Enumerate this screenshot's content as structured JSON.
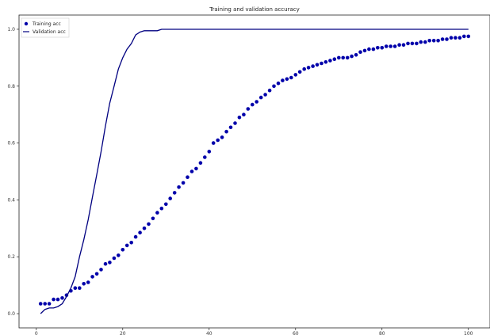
{
  "chart_data": {
    "type": "line",
    "title": "Training and validation accuracy",
    "xlabel": "",
    "ylabel": "",
    "xlim": [
      -4,
      105
    ],
    "ylim": [
      -0.05,
      1.05
    ],
    "xticks": [
      0,
      20,
      40,
      60,
      80,
      100
    ],
    "yticks": [
      0.0,
      0.2,
      0.4,
      0.6,
      0.8,
      1.0
    ],
    "xtick_labels": [
      "0",
      "20",
      "40",
      "60",
      "80",
      "100"
    ],
    "ytick_labels": [
      "0.0",
      "0.2",
      "0.4",
      "0.6",
      "0.8",
      "1.0"
    ],
    "grid": false,
    "legend_position": "top-left",
    "series": [
      {
        "name": "Training acc",
        "style": "dots",
        "color": "#0000aa",
        "x": [
          1,
          2,
          3,
          4,
          5,
          6,
          7,
          8,
          9,
          10,
          11,
          12,
          13,
          14,
          15,
          16,
          17,
          18,
          19,
          20,
          21,
          22,
          23,
          24,
          25,
          26,
          27,
          28,
          29,
          30,
          31,
          32,
          33,
          34,
          35,
          36,
          37,
          38,
          39,
          40,
          41,
          42,
          43,
          44,
          45,
          46,
          47,
          48,
          49,
          50,
          51,
          52,
          53,
          54,
          55,
          56,
          57,
          58,
          59,
          60,
          61,
          62,
          63,
          64,
          65,
          66,
          67,
          68,
          69,
          70,
          71,
          72,
          73,
          74,
          75,
          76,
          77,
          78,
          79,
          80,
          81,
          82,
          83,
          84,
          85,
          86,
          87,
          88,
          89,
          90,
          91,
          92,
          93,
          94,
          95,
          96,
          97,
          98,
          99,
          100
        ],
        "y": [
          0.035,
          0.035,
          0.035,
          0.05,
          0.05,
          0.055,
          0.065,
          0.08,
          0.09,
          0.09,
          0.105,
          0.11,
          0.13,
          0.14,
          0.155,
          0.175,
          0.18,
          0.195,
          0.205,
          0.225,
          0.24,
          0.25,
          0.27,
          0.285,
          0.3,
          0.315,
          0.335,
          0.355,
          0.37,
          0.385,
          0.405,
          0.425,
          0.445,
          0.46,
          0.48,
          0.5,
          0.51,
          0.53,
          0.55,
          0.57,
          0.6,
          0.61,
          0.62,
          0.64,
          0.655,
          0.67,
          0.69,
          0.7,
          0.72,
          0.735,
          0.745,
          0.76,
          0.77,
          0.785,
          0.8,
          0.81,
          0.82,
          0.825,
          0.83,
          0.84,
          0.85,
          0.86,
          0.865,
          0.87,
          0.875,
          0.88,
          0.885,
          0.89,
          0.895,
          0.9,
          0.9,
          0.9,
          0.905,
          0.91,
          0.92,
          0.925,
          0.93,
          0.93,
          0.935,
          0.935,
          0.94,
          0.94,
          0.94,
          0.945,
          0.945,
          0.95,
          0.95,
          0.95,
          0.955,
          0.955,
          0.96,
          0.96,
          0.96,
          0.965,
          0.965,
          0.97,
          0.97,
          0.97,
          0.975,
          0.975
        ]
      },
      {
        "name": "Validation acc",
        "style": "line",
        "color": "#000080",
        "x": [
          1,
          2,
          3,
          4,
          5,
          6,
          7,
          8,
          9,
          10,
          11,
          12,
          13,
          14,
          15,
          16,
          17,
          18,
          19,
          20,
          21,
          22,
          23,
          24,
          25,
          26,
          27,
          28,
          29,
          30,
          35,
          40,
          45,
          50,
          55,
          60,
          65,
          70,
          75,
          80,
          85,
          90,
          95,
          100
        ],
        "y": [
          0.0,
          0.015,
          0.02,
          0.02,
          0.025,
          0.035,
          0.06,
          0.09,
          0.13,
          0.2,
          0.26,
          0.33,
          0.41,
          0.49,
          0.57,
          0.66,
          0.74,
          0.8,
          0.86,
          0.9,
          0.93,
          0.95,
          0.98,
          0.99,
          0.995,
          0.995,
          0.995,
          0.995,
          1.0,
          1.0,
          1.0,
          1.0,
          1.0,
          1.0,
          1.0,
          1.0,
          1.0,
          1.0,
          1.0,
          1.0,
          1.0,
          1.0,
          1.0,
          1.0
        ]
      }
    ]
  }
}
